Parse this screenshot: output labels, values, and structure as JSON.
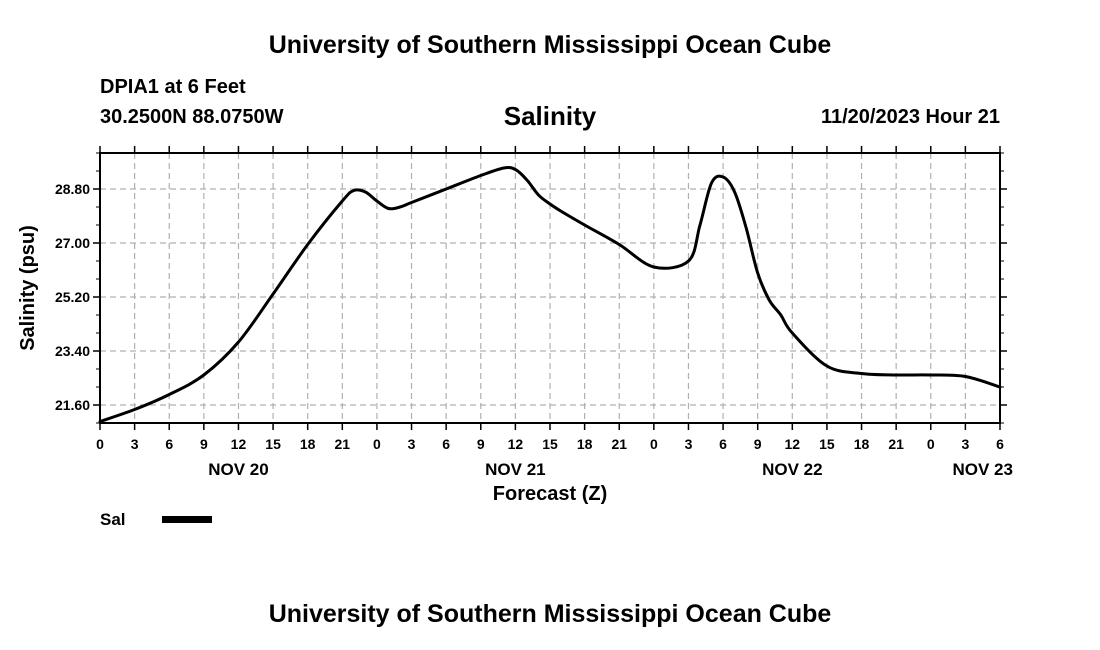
{
  "header": {
    "title": "University of Southern Mississippi Ocean Cube",
    "station": "DPIA1 at 6 Feet",
    "coords": "30.2500N  88.0750W",
    "variable": "Salinity",
    "issued": "11/20/2023 Hour 21"
  },
  "footer": {
    "title": "University of Southern Mississippi Ocean Cube"
  },
  "legend": {
    "label": "Sal"
  },
  "chart_data": {
    "type": "line",
    "title": "Salinity",
    "xlabel": "Forecast (Z)",
    "ylabel": "Salinity (psu)",
    "x_unit": "forecast hours from NOV 20 00Z",
    "xlim": [
      0,
      78
    ],
    "ylim": [
      21.0,
      30.0
    ],
    "grid": true,
    "legend_position": "bottom-left",
    "x_tick_labels": [
      "0",
      "3",
      "6",
      "9",
      "12",
      "15",
      "18",
      "21",
      "0",
      "3",
      "6",
      "9",
      "12",
      "15",
      "18",
      "21",
      "0",
      "3",
      "6",
      "9",
      "12",
      "15",
      "18",
      "21",
      "0",
      "3",
      "6"
    ],
    "y_ticks": [
      21.6,
      23.4,
      25.2,
      27.0,
      28.8
    ],
    "y_tick_labels": [
      "21.60",
      "23.40",
      "25.20",
      "27.00",
      "28.80"
    ],
    "date_labels": [
      {
        "label": "NOV 20",
        "hour": 12
      },
      {
        "label": "NOV 21",
        "hour": 36
      },
      {
        "label": "NOV 22",
        "hour": 60
      },
      {
        "label": "NOV 23",
        "hour": 76.5
      }
    ],
    "series": [
      {
        "name": "Sal",
        "x": [
          0,
          3,
          6,
          9,
          12,
          15,
          18,
          21,
          22,
          23,
          24,
          25,
          26,
          27,
          30,
          33,
          35,
          36,
          37,
          38,
          39,
          40,
          42,
          45,
          48,
          51,
          52,
          53,
          54,
          55,
          56,
          57,
          58,
          59,
          60,
          63,
          66,
          69,
          72,
          75,
          78
        ],
        "y": [
          21.05,
          21.45,
          21.95,
          22.6,
          23.7,
          25.3,
          26.95,
          28.4,
          28.75,
          28.7,
          28.4,
          28.15,
          28.2,
          28.35,
          28.8,
          29.25,
          29.5,
          29.45,
          29.1,
          28.6,
          28.3,
          28.05,
          27.6,
          26.95,
          26.2,
          26.4,
          27.6,
          29.0,
          29.2,
          28.7,
          27.5,
          26.0,
          25.1,
          24.6,
          24.0,
          22.9,
          22.65,
          22.6,
          22.6,
          22.55,
          22.2
        ]
      }
    ]
  }
}
